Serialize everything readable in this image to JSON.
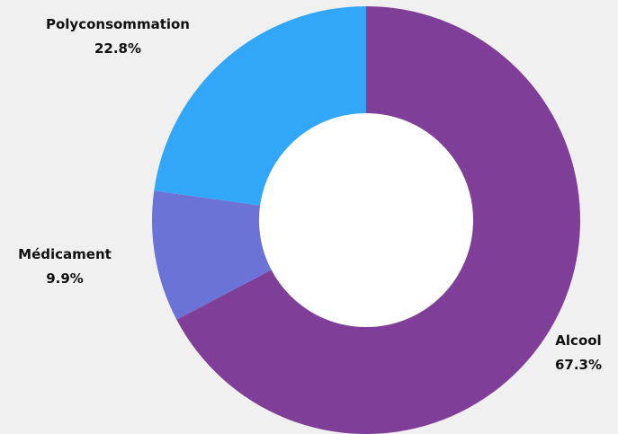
{
  "chart_data": {
    "type": "pie",
    "title": "",
    "legend": "none",
    "slices": [
      {
        "label": "Alcool",
        "value": 67.3,
        "value_label": "67.3%",
        "color": "#7f3f98"
      },
      {
        "label": "Médicament",
        "value": 9.9,
        "value_label": "9.9%",
        "color": "#6b74d6"
      },
      {
        "label": "Polyconsommation",
        "value": 22.8,
        "value_label": "22.8%",
        "color": "#32a6f7"
      }
    ]
  },
  "colors": {
    "background": "#f0f0f0",
    "donut_hole": "#ffffff",
    "label_text": "#111111"
  }
}
